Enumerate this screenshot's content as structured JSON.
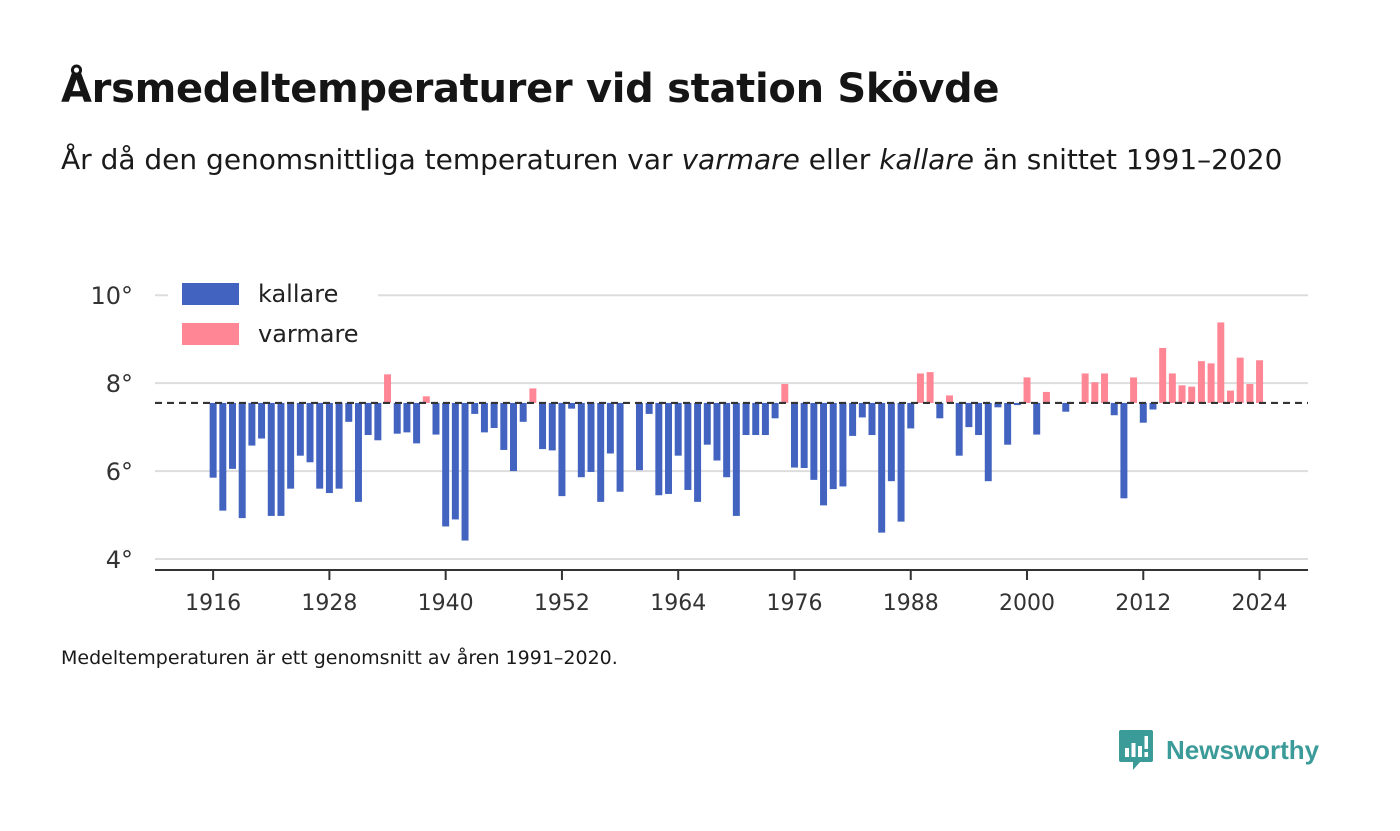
{
  "header": {
    "title": "Årsmedeltemperaturer vid station Skövde",
    "subtitle_prefix": "År då den genomsnittliga temperaturen var ",
    "subtitle_warm": "varmare",
    "subtitle_mid": " eller ",
    "subtitle_cold": "kallare",
    "subtitle_suffix": " än snittet 1991–2020"
  },
  "footer": {
    "note": "Medeltemperaturen är ett genomsnitt av åren 1991–2020.",
    "brand": "Newsworthy"
  },
  "colors": {
    "cold": "#4264c0",
    "warm": "#ff8795",
    "brand": "#3b9b98",
    "grid": "#dddddd",
    "baseline": "#333333"
  },
  "chart_data": {
    "type": "bar",
    "baseline": 7.55,
    "xlim": [
      1910,
      2029
    ],
    "ylim": [
      3.75,
      10.3
    ],
    "y_ticks": [
      4,
      6,
      8,
      10
    ],
    "y_tick_labels": [
      "4°",
      "6°",
      "8°",
      "10°"
    ],
    "x_ticks": [
      1916,
      1928,
      1940,
      1952,
      1964,
      1976,
      1988,
      2000,
      2012,
      2024
    ],
    "x_tick_labels": [
      "1916",
      "1928",
      "1940",
      "1952",
      "1964",
      "1976",
      "1988",
      "2000",
      "2012",
      "2024"
    ],
    "grid": "horizontal",
    "legend_position": "top-left",
    "series": [
      {
        "name": "kallare",
        "color": "#4264c0"
      },
      {
        "name": "varmare",
        "color": "#ff8795"
      }
    ],
    "years": [
      1916,
      1917,
      1918,
      1919,
      1920,
      1921,
      1922,
      1923,
      1924,
      1925,
      1926,
      1927,
      1928,
      1929,
      1930,
      1931,
      1932,
      1933,
      1934,
      1935,
      1936,
      1937,
      1938,
      1939,
      1940,
      1941,
      1942,
      1943,
      1944,
      1945,
      1946,
      1947,
      1948,
      1949,
      1950,
      1951,
      1952,
      1953,
      1954,
      1955,
      1956,
      1957,
      1958,
      1959,
      1960,
      1961,
      1962,
      1963,
      1964,
      1965,
      1966,
      1967,
      1968,
      1969,
      1970,
      1971,
      1972,
      1973,
      1974,
      1975,
      1976,
      1977,
      1978,
      1979,
      1980,
      1981,
      1982,
      1983,
      1984,
      1985,
      1986,
      1987,
      1988,
      1989,
      1990,
      1991,
      1992,
      1993,
      1994,
      1995,
      1996,
      1997,
      1998,
      1999,
      2000,
      2001,
      2002,
      2003,
      2004,
      2005,
      2006,
      2007,
      2008,
      2009,
      2010,
      2011,
      2012,
      2013,
      2014,
      2015,
      2016,
      2017,
      2018,
      2019,
      2020,
      2021,
      2022,
      2023,
      2024
    ],
    "values": [
      5.85,
      5.1,
      6.05,
      4.93,
      6.58,
      6.74,
      4.98,
      4.98,
      5.6,
      6.35,
      6.2,
      5.6,
      5.5,
      5.6,
      7.12,
      5.3,
      6.82,
      6.7,
      8.2,
      6.85,
      6.88,
      6.63,
      7.7,
      6.83,
      4.74,
      4.9,
      4.42,
      7.3,
      6.88,
      6.98,
      6.48,
      6.0,
      7.12,
      7.88,
      6.5,
      6.47,
      5.43,
      7.42,
      5.86,
      5.98,
      5.3,
      6.4,
      5.53,
      null,
      6.02,
      7.3,
      5.45,
      5.48,
      6.35,
      5.57,
      5.3,
      6.6,
      6.24,
      5.86,
      4.98,
      6.82,
      6.82,
      6.82,
      7.2,
      7.98,
      6.08,
      6.07,
      5.8,
      5.22,
      5.59,
      5.65,
      6.8,
      7.22,
      6.82,
      4.6,
      5.77,
      4.85,
      6.97,
      8.22,
      8.25,
      7.2,
      7.72,
      6.35,
      7.0,
      6.82,
      5.77,
      7.45,
      6.6,
      7.5,
      8.13,
      6.83,
      7.8,
      null,
      7.35,
      null,
      8.22,
      8.02,
      8.22,
      7.27,
      5.38,
      8.13,
      7.1,
      7.4,
      8.8,
      8.22,
      7.95,
      7.92,
      8.5,
      8.45,
      9.38,
      7.83,
      8.58,
      7.98,
      8.52
    ]
  }
}
